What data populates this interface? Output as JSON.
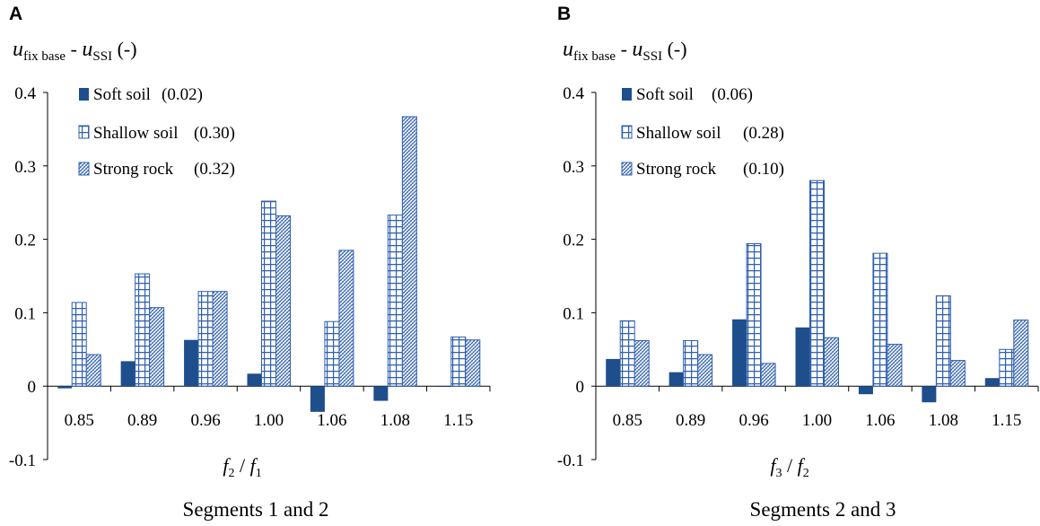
{
  "colors": {
    "soft": "#1f4e8c",
    "pattern": "#2f5fb0",
    "axis": "#000000"
  },
  "chart_data": [
    {
      "type": "bar",
      "panel_label": "A",
      "title": "Segments 1 and 2",
      "ylabel": {
        "var": "u",
        "sub1": "fix base",
        "dash": " - ",
        "sub2": "SSI",
        "unit": " (-)"
      },
      "xlabel": {
        "num": "f",
        "num_sub": "2",
        "sep": " / ",
        "den": "f",
        "den_sub": "1"
      },
      "ylim": [
        -0.1,
        0.4
      ],
      "yticks": [
        -0.1,
        0,
        0.1,
        0.2,
        0.3,
        0.4
      ],
      "ytick_labels": [
        "-0.1",
        "0",
        "0.1",
        "0.2",
        "0.3",
        "0.4"
      ],
      "categories": [
        "0.85",
        "0.89",
        "0.96",
        "1.00",
        "1.06",
        "1.08",
        "1.15"
      ],
      "series": [
        {
          "name": "Soft soil",
          "value_label": "(0.02)",
          "pattern": "solid",
          "values": [
            -0.003,
            0.034,
            0.063,
            0.017,
            -0.035,
            -0.02,
            -0.001
          ]
        },
        {
          "name": "Shallow soil",
          "value_label": "(0.30)",
          "pattern": "grid",
          "values": [
            0.114,
            0.153,
            0.129,
            0.252,
            0.088,
            0.233,
            0.067
          ]
        },
        {
          "name": "Strong rock",
          "value_label": "(0.32)",
          "pattern": "hatch",
          "values": [
            0.043,
            0.107,
            0.129,
            0.232,
            0.185,
            0.367,
            0.063
          ]
        }
      ]
    },
    {
      "type": "bar",
      "panel_label": "B",
      "title": "Segments 2 and 3",
      "ylabel": {
        "var": "u",
        "sub1": "fix base",
        "dash": " - ",
        "sub2": "SSI",
        "unit": " (-)"
      },
      "xlabel": {
        "num": "f",
        "num_sub": "3",
        "sep": " / ",
        "den": "f",
        "den_sub": "2"
      },
      "ylim": [
        -0.1,
        0.4
      ],
      "yticks": [
        -0.1,
        0,
        0.1,
        0.2,
        0.3,
        0.4
      ],
      "ytick_labels": [
        "-0.1",
        "0",
        "0.1",
        "0.2",
        "0.3",
        "0.4"
      ],
      "categories": [
        "0.85",
        "0.89",
        "0.96",
        "1.00",
        "1.06",
        "1.08",
        "1.15"
      ],
      "series": [
        {
          "name": "Soft soil",
          "value_label": "(0.06)",
          "pattern": "solid",
          "values": [
            0.037,
            0.019,
            0.091,
            0.08,
            -0.011,
            -0.022,
            0.011
          ]
        },
        {
          "name": "Shallow soil",
          "value_label": "(0.28)",
          "pattern": "grid",
          "values": [
            0.089,
            0.062,
            0.194,
            0.28,
            0.181,
            0.123,
            0.05
          ]
        },
        {
          "name": "Strong rock",
          "value_label": "(0.10)",
          "pattern": "hatch",
          "values": [
            0.062,
            0.043,
            0.031,
            0.066,
            0.057,
            0.035,
            0.09
          ]
        }
      ]
    }
  ]
}
